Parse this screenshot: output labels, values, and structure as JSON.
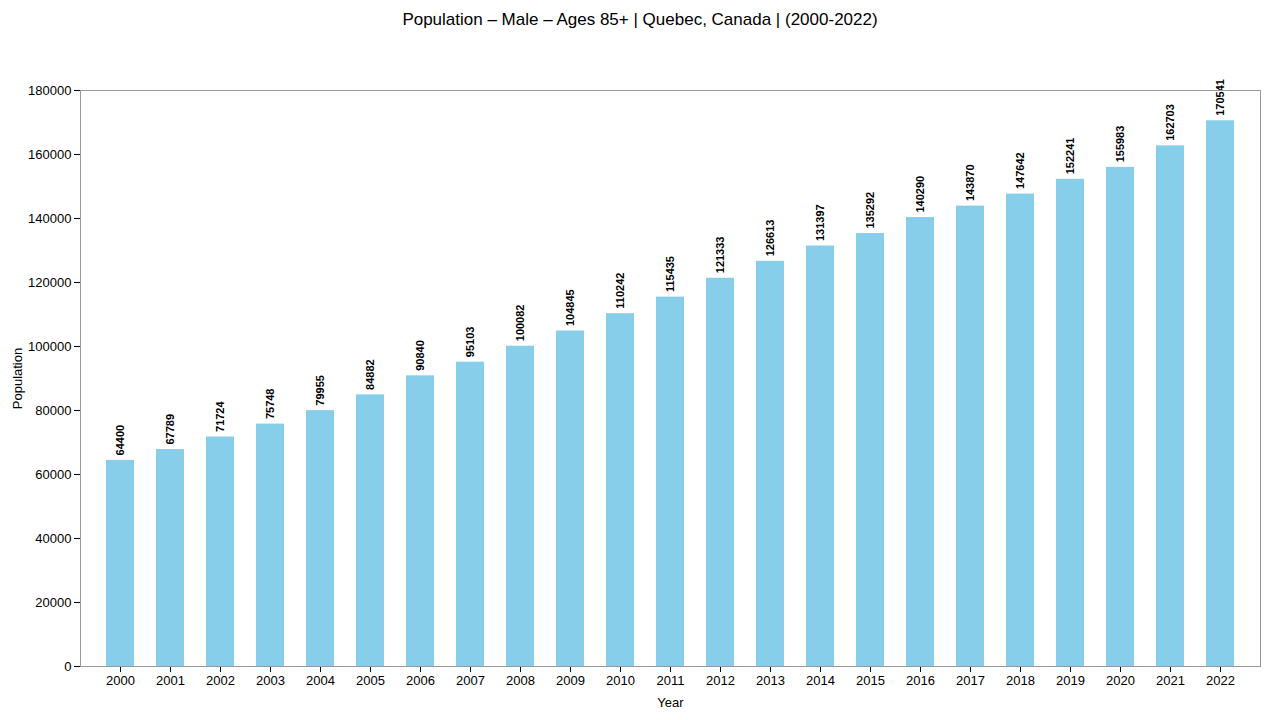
{
  "chart_data": {
    "type": "bar",
    "title": "Population – Male – Ages 85+ | Quebec, Canada |  (2000-2022)",
    "xlabel": "Year",
    "ylabel": "Population",
    "categories": [
      "2000",
      "2001",
      "2002",
      "2003",
      "2004",
      "2005",
      "2006",
      "2007",
      "2008",
      "2009",
      "2010",
      "2011",
      "2012",
      "2013",
      "2014",
      "2015",
      "2016",
      "2017",
      "2018",
      "2019",
      "2020",
      "2021",
      "2022"
    ],
    "values": [
      64400,
      67789,
      71724,
      75748,
      79955,
      84882,
      90840,
      95103,
      100082,
      104845,
      110242,
      115435,
      121333,
      126613,
      131397,
      135292,
      140290,
      143870,
      147642,
      152241,
      155983,
      162703,
      170541
    ],
    "color": "#87CEEB",
    "ylim": [
      0,
      180000
    ],
    "yticks": [
      0,
      20000,
      40000,
      60000,
      80000,
      100000,
      120000,
      140000,
      160000,
      180000
    ],
    "grid": false,
    "data_labels": true
  }
}
